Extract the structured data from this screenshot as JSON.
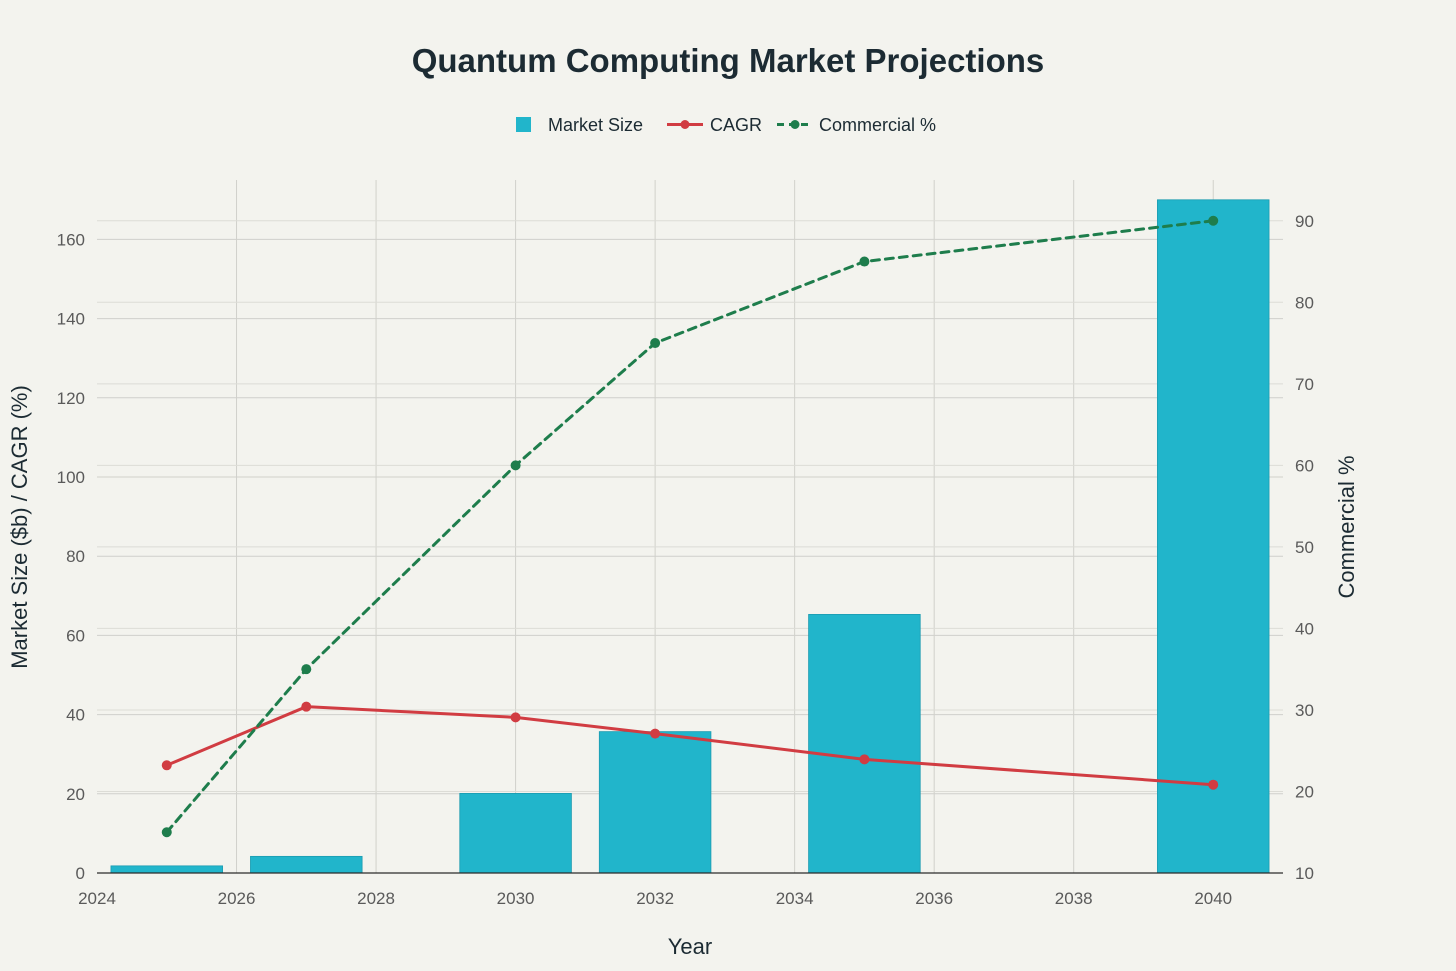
{
  "chart_data": {
    "type": "bar",
    "title": "Quantum Computing Market Projections",
    "xlabel": "Year",
    "ylabel": "Market Size ($b) / CAGR (%)",
    "y2label": "Commercial %",
    "xlim": [
      2024,
      2041
    ],
    "ylim": [
      0,
      175
    ],
    "y2lim": [
      10,
      95
    ],
    "xticks": [
      2024,
      2026,
      2028,
      2030,
      2032,
      2034,
      2036,
      2038,
      2040
    ],
    "yticks": [
      0,
      20,
      40,
      60,
      80,
      100,
      120,
      140,
      160
    ],
    "y2ticks": [
      10,
      20,
      30,
      40,
      50,
      60,
      70,
      80,
      90
    ],
    "grid": true,
    "legend_position": "top-center",
    "series": [
      {
        "name": "Market Size",
        "type": "bar",
        "axis": "left",
        "color": "#21b5cb",
        "x": [
          2025,
          2027,
          2030,
          2032,
          2035,
          2040
        ],
        "values": [
          1.8,
          4.2,
          20.1,
          35.7,
          65.3,
          170
        ]
      },
      {
        "name": "CAGR",
        "type": "line",
        "axis": "left",
        "color": "#d13c42",
        "x": [
          2025,
          2027,
          2030,
          2032,
          2035,
          2040
        ],
        "values": [
          27.2,
          42,
          39.3,
          35.2,
          28.7,
          22.3
        ]
      },
      {
        "name": "Commercial %",
        "type": "line",
        "dash": true,
        "axis": "right",
        "color": "#1e7d4c",
        "x": [
          2025,
          2027,
          2030,
          2032,
          2035,
          2040
        ],
        "values": [
          15,
          35,
          60,
          75,
          85,
          90
        ]
      }
    ]
  }
}
